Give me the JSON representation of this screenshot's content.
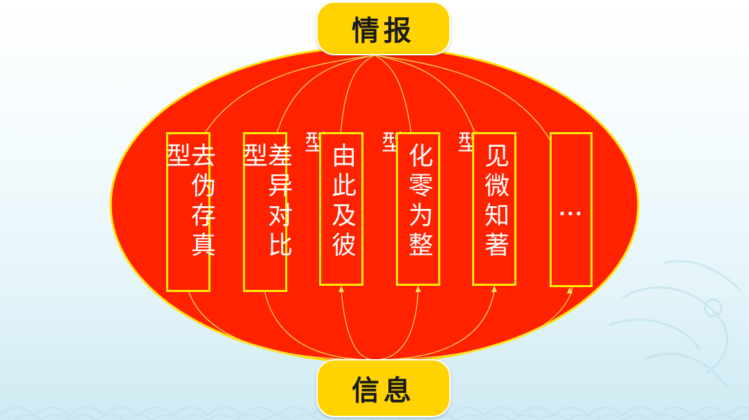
{
  "top_label": "情报",
  "bottom_label": "信息",
  "columns": [
    {
      "text": "去伪存真型"
    },
    {
      "text": "差异对比型"
    },
    {
      "text": "由此及彼",
      "side_label": "型"
    },
    {
      "text": "化零为整",
      "side_label": "型"
    },
    {
      "text": "见微知著",
      "side_label": "型"
    },
    {
      "text": "..."
    }
  ],
  "colors": {
    "ellipse_fill": "#ff2200",
    "ellipse_border": "#ffe000",
    "column_border": "#ffec00",
    "pill_fill": "#ffd200",
    "lines": "#ffe45a"
  }
}
